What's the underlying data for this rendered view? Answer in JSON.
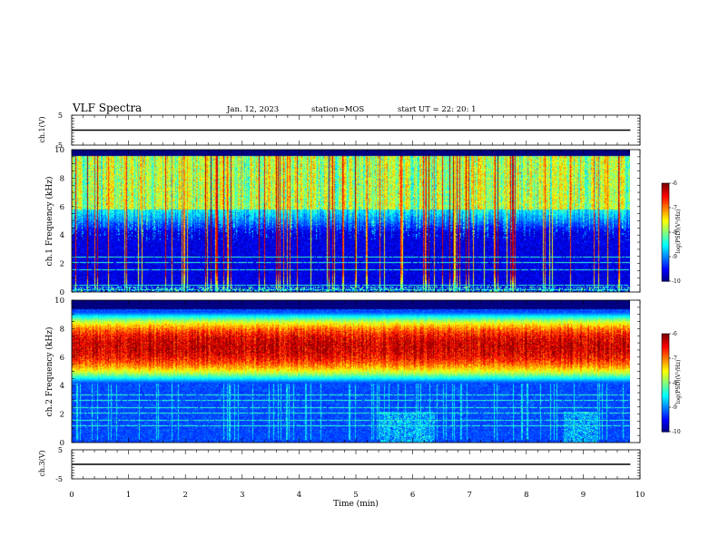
{
  "header": {
    "title": "VLF Spectra",
    "date": "Jan. 12, 2023",
    "station": "station=MOS",
    "start": "start UT =  22: 20: 1"
  },
  "colorbar": {
    "label": "log(PSD)(V²/Hz)",
    "ticks": [
      "-6",
      "-7",
      "-8",
      "-9",
      "-10"
    ]
  },
  "chart_data": [
    {
      "type": "line",
      "name": "ch1-waveform",
      "ylabel": "ch.1(V)",
      "ylim": [
        -5,
        5
      ],
      "yticks": [
        "5",
        "-5"
      ],
      "x": [
        0,
        9.83
      ],
      "values": [
        0,
        0
      ]
    },
    {
      "type": "heatmap",
      "name": "ch1-spectrogram",
      "ylabel": "ch.1 Frequency (kHz)",
      "ylim": [
        0,
        10
      ],
      "yticks": [
        "0",
        "2",
        "4",
        "6",
        "8",
        "10"
      ],
      "xlim": [
        0,
        10
      ],
      "data_xmax": 9.83,
      "colorscale": "jet",
      "zlim": [
        -10,
        -6
      ],
      "band_khz": [
        5.8,
        9.6
      ],
      "band_level": -7.8,
      "background_level": -9.6,
      "sferic_spikes": "many vertical broadband spikes reaching -6 to -7 across 0 to 9.83 min",
      "horizontal_lines_khz": [
        0.2,
        0.5,
        1.6,
        2.1,
        2.5
      ]
    },
    {
      "type": "heatmap",
      "name": "ch2-spectrogram",
      "ylabel": "ch.2 Frequency (kHz)",
      "ylim": [
        0,
        10
      ],
      "yticks": [
        "0",
        "2",
        "4",
        "6",
        "8",
        "10"
      ],
      "xlim": [
        0,
        10
      ],
      "data_xmax": 9.83,
      "colorscale": "jet",
      "zlim": [
        -10,
        -6
      ],
      "band_khz": [
        4.2,
        9.2
      ],
      "band_peak_khz": 6.8,
      "band_level": -6.8,
      "background_level": -9.3,
      "horizontal_lines_khz": [
        1.2,
        1.6,
        2.1,
        2.5,
        3.0,
        3.4
      ]
    },
    {
      "type": "line",
      "name": "ch3-waveform",
      "ylabel": "ch.3(V)",
      "ylim": [
        -5,
        5
      ],
      "yticks": [
        "5",
        "-5"
      ],
      "x": [
        0,
        9.83
      ],
      "values": [
        0,
        0
      ]
    }
  ],
  "xaxis": {
    "label": "Time (min)",
    "ticks": [
      "0",
      "1",
      "2",
      "3",
      "4",
      "5",
      "6",
      "7",
      "8",
      "9",
      "10"
    ]
  }
}
